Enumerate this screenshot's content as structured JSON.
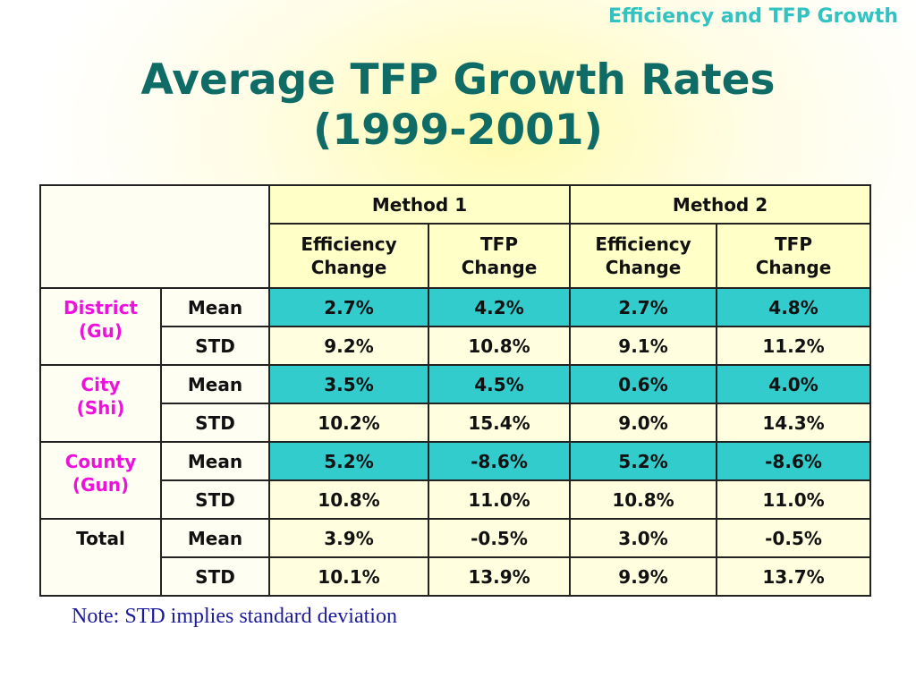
{
  "header": {
    "corner_title": "Efficiency and TFP Growth",
    "title_line1": "Average TFP Growth Rates",
    "title_line2": "(1999-2001)"
  },
  "table": {
    "method1": "Method 1",
    "method2": "Method 2",
    "sub": [
      "Efficiency Change",
      "TFP Change",
      "Efficiency Change",
      "TFP Change"
    ],
    "groups": [
      {
        "label_line1": "District",
        "label_line2": "(Gu)",
        "rows": [
          {
            "stat": "Mean",
            "values": [
              "2.7%",
              "4.2%",
              "2.7%",
              "4.8%"
            ]
          },
          {
            "stat": "STD",
            "values": [
              "9.2%",
              "10.8%",
              "9.1%",
              "11.2%"
            ]
          }
        ]
      },
      {
        "label_line1": "City",
        "label_line2": "(Shi)",
        "rows": [
          {
            "stat": "Mean",
            "values": [
              "3.5%",
              "4.5%",
              "0.6%",
              "4.0%"
            ]
          },
          {
            "stat": "STD",
            "values": [
              "10.2%",
              "15.4%",
              "9.0%",
              "14.3%"
            ]
          }
        ]
      },
      {
        "label_line1": "County",
        "label_line2": "(Gun)",
        "rows": [
          {
            "stat": "Mean",
            "values": [
              "5.2%",
              "-8.6%",
              "5.2%",
              "-8.6%"
            ]
          },
          {
            "stat": "STD",
            "values": [
              "10.8%",
              "11.0%",
              "10.8%",
              "11.0%"
            ]
          }
        ]
      },
      {
        "label_line1": "Total",
        "label_line2": "",
        "rows": [
          {
            "stat": "Mean",
            "values": [
              "3.9%",
              "-0.5%",
              "3.0%",
              "-0.5%"
            ]
          },
          {
            "stat": "STD",
            "values": [
              "10.1%",
              "13.9%",
              "9.9%",
              "13.7%"
            ]
          }
        ]
      }
    ]
  },
  "note": "Note: STD implies standard deviation",
  "colors": {
    "title": "#0f6b66",
    "corner_title": "#33c2c2",
    "group_label": "#ee11dd",
    "mean_row": "#33cccc",
    "note": "#1b1b9c"
  }
}
